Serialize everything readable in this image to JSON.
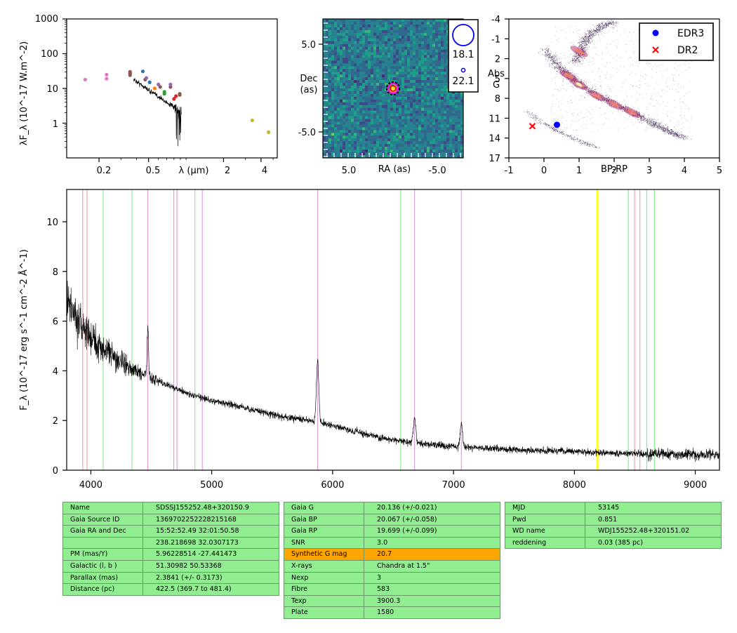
{
  "sed_panel": {
    "ylabel": "λF_λ (10^-17 W.m^-2)",
    "xlabel": "λ (μm)",
    "y_ticks": [
      "1000",
      "100",
      "10",
      "1"
    ],
    "x_ticks": [
      "0.2",
      "0.5",
      "2",
      "4"
    ]
  },
  "image_panel": {
    "ylabel_1": "Dec",
    "ylabel_2": "(as)",
    "xlabel": "RA (as)",
    "y_ticks": [
      "5.0",
      "-5.0"
    ],
    "x_ticks": [
      "5.0",
      "-5.0"
    ],
    "legend": [
      "18.1",
      "22.1"
    ]
  },
  "hr_panel": {
    "ylabel_1": "Abs",
    "ylabel_2": "G",
    "xlabel": "BP-RP",
    "y_ticks": [
      "-4",
      "-1",
      "2",
      "5",
      "8",
      "11",
      "14",
      "17"
    ],
    "x_ticks": [
      "-1",
      "0",
      "1",
      "2",
      "3",
      "4",
      "5"
    ],
    "legend": [
      {
        "label": "EDR3",
        "color": "#0000ff",
        "marker": "circle"
      },
      {
        "label": "DR2",
        "color": "#ff0000",
        "marker": "x"
      }
    ]
  },
  "spectrum_panel": {
    "ylabel": "F_λ (10^-17 erg s^-1 cm^-2 Å^-1)",
    "y_ticks": [
      "0",
      "2",
      "4",
      "6",
      "8",
      "10"
    ],
    "x_ticks": [
      "4000",
      "5000",
      "6000",
      "7000",
      "8000",
      "9000"
    ]
  },
  "chart_data": [
    {
      "type": "scatter",
      "panel": "SED",
      "xlabel": "λ (μm)",
      "ylabel": "λF_λ (10^-17 W.m^-2)",
      "xscale": "log",
      "yscale": "log",
      "xlim": [
        0.11,
        5.4
      ],
      "ylim": [
        0.1,
        1000
      ],
      "series": [
        {
          "color": "#e377c2",
          "points": [
            [
              0.155,
              18
            ],
            [
              0.23,
              25
            ],
            [
              0.23,
              19
            ]
          ]
        },
        {
          "color": "#8c564b",
          "points": [
            [
              0.355,
              27
            ],
            [
              0.355,
              24
            ],
            [
              0.355,
              30
            ],
            [
              0.47,
              18
            ],
            [
              0.62,
              11
            ],
            [
              0.75,
              11
            ],
            [
              0.89,
              7
            ],
            [
              0.89,
              6.5
            ]
          ]
        },
        {
          "color": "#1f77b4",
          "points": [
            [
              0.45,
              31
            ],
            [
              0.51,
              15
            ]
          ]
        },
        {
          "color": "#9467bd",
          "points": [
            [
              0.48,
              20
            ],
            [
              0.6,
              13
            ],
            [
              0.75,
              13
            ]
          ]
        },
        {
          "color": "#2ca02c",
          "points": [
            [
              0.67,
              8
            ],
            [
              0.67,
              7
            ]
          ]
        },
        {
          "color": "#d62728",
          "points": [
            [
              0.8,
              5
            ],
            [
              0.83,
              6
            ]
          ]
        },
        {
          "color": "#ff7f0e",
          "points": [
            [
              0.56,
              10
            ]
          ]
        },
        {
          "color": "#bcbd22",
          "points": [
            [
              3.4,
              1.2
            ],
            [
              4.6,
              0.55
            ]
          ]
        }
      ],
      "spectrum_overlay": {
        "color": "#000000",
        "x_range_um": [
          0.38,
          0.92
        ],
        "y_range": [
          2,
          18
        ]
      }
    },
    {
      "type": "heatmap",
      "panel": "image",
      "xlabel": "RA (as)",
      "ylabel": "Dec (as)",
      "xlim": [
        8,
        -8
      ],
      "ylim": [
        -8,
        8
      ],
      "colormap": "viridis",
      "target": {
        "ra": 0,
        "dec": 0
      },
      "legend": [
        {
          "label": "18.1",
          "color": "#0000ff"
        },
        {
          "label": "22.1",
          "color": "#0000ff"
        }
      ]
    },
    {
      "type": "scatter",
      "panel": "HR diagram",
      "xlabel": "BP-RP",
      "ylabel": "Abs G",
      "xlim": [
        -1,
        5
      ],
      "ylim": [
        17,
        -4
      ],
      "series": [
        {
          "name": "EDR3",
          "color": "#0000ff",
          "points": [
            [
              0.37,
              12.0
            ]
          ]
        },
        {
          "name": "DR2",
          "color": "#ff0000",
          "points": [
            [
              -0.33,
              12.2
            ]
          ]
        }
      ],
      "background": "density of field stars (magma colormap)"
    },
    {
      "type": "line",
      "panel": "spectrum",
      "ylabel": "F_λ (10^-17 erg s^-1 cm^-2 Å^-1)",
      "xlim": [
        3800,
        9200
      ],
      "ylim": [
        0,
        11.3
      ],
      "anchors": [
        [
          3800,
          7.0
        ],
        [
          3850,
          6.4
        ],
        [
          3900,
          6.0
        ],
        [
          4000,
          5.4
        ],
        [
          4100,
          4.9
        ],
        [
          4200,
          4.5
        ],
        [
          4300,
          4.2
        ],
        [
          4400,
          3.9
        ],
        [
          4500,
          3.7
        ],
        [
          4600,
          3.5
        ],
        [
          4700,
          3.3
        ],
        [
          4800,
          3.1
        ],
        [
          5000,
          2.8
        ],
        [
          5200,
          2.6
        ],
        [
          5400,
          2.35
        ],
        [
          5600,
          2.15
        ],
        [
          5800,
          2.0
        ],
        [
          6000,
          1.8
        ],
        [
          6200,
          1.55
        ],
        [
          6400,
          1.3
        ],
        [
          6600,
          1.15
        ],
        [
          6800,
          1.05
        ],
        [
          7000,
          0.95
        ],
        [
          7200,
          0.9
        ],
        [
          7400,
          0.85
        ],
        [
          7600,
          0.8
        ],
        [
          7800,
          0.78
        ],
        [
          8000,
          0.75
        ],
        [
          8200,
          0.7
        ],
        [
          8400,
          0.68
        ],
        [
          8600,
          0.65
        ],
        [
          8800,
          0.65
        ],
        [
          9000,
          0.62
        ],
        [
          9200,
          0.6
        ]
      ],
      "emission_lines": [
        {
          "center": 4471,
          "height": 2.0,
          "width": 6
        },
        {
          "center": 5876,
          "height": 2.5,
          "width": 10
        },
        {
          "center": 6678,
          "height": 1.0,
          "width": 10
        },
        {
          "center": 7065,
          "height": 0.9,
          "width": 10
        }
      ],
      "vertical_lines": [
        {
          "x": 3933,
          "color": "#f4a6a6"
        },
        {
          "x": 3968,
          "color": "#f4a6a6"
        },
        {
          "x": 4102,
          "color": "#90ee90"
        },
        {
          "x": 4340,
          "color": "#90ee90"
        },
        {
          "x": 4471,
          "color": "#dda0dd"
        },
        {
          "x": 4686,
          "color": "#dda0dd"
        },
        {
          "x": 4713,
          "color": "#dda0dd"
        },
        {
          "x": 4861,
          "color": "#90ee90"
        },
        {
          "x": 4922,
          "color": "#dda0dd"
        },
        {
          "x": 5876,
          "color": "#dda0dd"
        },
        {
          "x": 6563,
          "color": "#90ee90"
        },
        {
          "x": 6678,
          "color": "#dda0dd"
        },
        {
          "x": 7065,
          "color": "#dda0dd"
        },
        {
          "x": 8186,
          "color": "#ffff00"
        },
        {
          "x": 8195,
          "color": "#ffff00"
        },
        {
          "x": 8446,
          "color": "#90ee90"
        },
        {
          "x": 8498,
          "color": "#f4a6a6"
        },
        {
          "x": 8542,
          "color": "#f4a6a6"
        },
        {
          "x": 8598,
          "color": "#90ee90"
        },
        {
          "x": 8662,
          "color": "#90ee90"
        }
      ]
    }
  ],
  "tables": {
    "left": [
      [
        "Name",
        "SDSSJ155252.48+320150.9"
      ],
      [
        "Gaia Source ID",
        "1369702252228215168"
      ],
      [
        "Gaia RA and Dec",
        "15:52:52.49    32:01:50.58"
      ],
      [
        "",
        "238.218698    32.0307173"
      ],
      [
        "PM (mas/Y)",
        "5.96228514    -27.441473"
      ],
      [
        "Galactic (l, b )",
        "51.30982    50.53368"
      ],
      [
        "Parallax (mas)",
        "2.3841 (+/- 0.3173)"
      ],
      [
        "Distance (pc)",
        "422.5 (369.7 to 481.4)"
      ]
    ],
    "middle": [
      [
        "Gaia G",
        "20.136 (+/-0.021)"
      ],
      [
        "Gaia BP",
        "20.067 (+/-0.058)"
      ],
      [
        "Gaia RP",
        "19.699 (+/-0.099)"
      ],
      [
        "SNR",
        "3.0"
      ],
      [
        "Synthetic G mag",
        "20.7"
      ],
      [
        "X-rays",
        "Chandra at 1.5\""
      ],
      [
        "Nexp",
        "3"
      ],
      [
        "Fibre",
        "583"
      ],
      [
        "Texp",
        "3900.3"
      ],
      [
        "Plate",
        "1580"
      ]
    ],
    "right": [
      [
        "MJD",
        "53145"
      ],
      [
        "Pwd",
        "0.851"
      ],
      [
        "WD name",
        "WDJ155252.48+320151.02"
      ],
      [
        "reddening",
        "0.03 (385 pc)"
      ]
    ]
  }
}
